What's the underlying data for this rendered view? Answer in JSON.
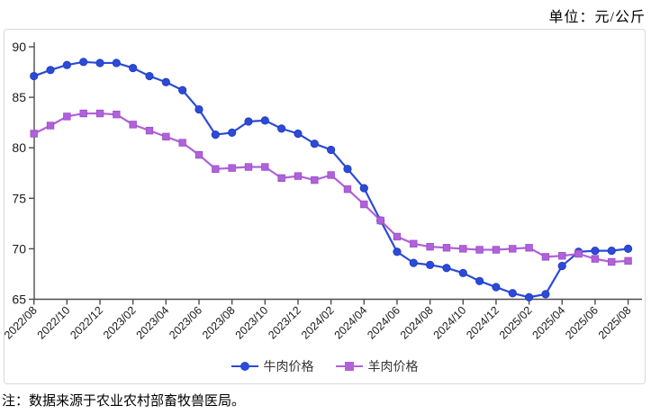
{
  "page": {
    "unit_label": "单位：元/公斤",
    "note": "注：数据来源于农业农村部畜牧兽医局。"
  },
  "colors": {
    "beef": "#2b4bd7",
    "beef_marker_stroke": "#2038b9",
    "lamb": "#b161d9",
    "lamb_marker_stroke": "#9a4fc8",
    "axis": "#4c4c4c",
    "tick_text": "#1a1a1a",
    "panel_border": "#d9d9d9"
  },
  "chart_data": {
    "type": "line",
    "title": "",
    "xlabel": "",
    "ylabel": "",
    "unit": "元/公斤",
    "ylim": [
      65,
      90
    ],
    "yticks": [
      65,
      70,
      75,
      80,
      85,
      90
    ],
    "grid": false,
    "legend_position": "bottom",
    "x": [
      "2022/08",
      "2022/09",
      "2022/10",
      "2022/11",
      "2022/12",
      "2023/01",
      "2023/02",
      "2023/03",
      "2023/04",
      "2023/05",
      "2023/06",
      "2023/07",
      "2023/08",
      "2023/09",
      "2023/10",
      "2023/11",
      "2023/12",
      "2024/01",
      "2024/02",
      "2024/03",
      "2024/04",
      "2024/05",
      "2024/06",
      "2024/07",
      "2024/08",
      "2024/09",
      "2024/10",
      "2024/11",
      "2024/12",
      "2025/01",
      "2025/02",
      "2025/03",
      "2025/04",
      "2025/05",
      "2025/06",
      "2025/07",
      "2025/08"
    ],
    "x_tick_labels": [
      "2022/08",
      "2022/10",
      "2022/12",
      "2023/02",
      "2023/04",
      "2023/06",
      "2023/08",
      "2023/10",
      "2023/12",
      "2024/02",
      "2024/04",
      "2024/06",
      "2024/08",
      "2024/10",
      "2024/12",
      "2025/02",
      "2025/04",
      "2025/06",
      "2025/08"
    ],
    "series": [
      {
        "name": "牛肉价格",
        "marker": "circle",
        "color": "#2b4bd7",
        "values": [
          87.1,
          87.7,
          88.2,
          88.5,
          88.4,
          88.4,
          87.9,
          87.1,
          86.5,
          85.7,
          83.8,
          81.3,
          81.5,
          82.6,
          82.7,
          81.9,
          81.4,
          80.4,
          79.8,
          77.9,
          76.0,
          72.8,
          69.7,
          68.6,
          68.4,
          68.1,
          67.6,
          66.8,
          66.2,
          65.6,
          65.2,
          65.5,
          68.3,
          69.7,
          69.8,
          69.8,
          70.0
        ]
      },
      {
        "name": "羊肉价格",
        "marker": "square",
        "color": "#b161d9",
        "values": [
          81.4,
          82.2,
          83.1,
          83.4,
          83.4,
          83.3,
          82.3,
          81.7,
          81.1,
          80.5,
          79.3,
          77.9,
          78.0,
          78.1,
          78.1,
          77.0,
          77.2,
          76.8,
          77.3,
          75.9,
          74.4,
          72.8,
          71.2,
          70.5,
          70.2,
          70.1,
          70.0,
          69.9,
          69.9,
          70.0,
          70.1,
          69.2,
          69.3,
          69.5,
          69.0,
          68.7,
          68.8
        ]
      }
    ]
  }
}
